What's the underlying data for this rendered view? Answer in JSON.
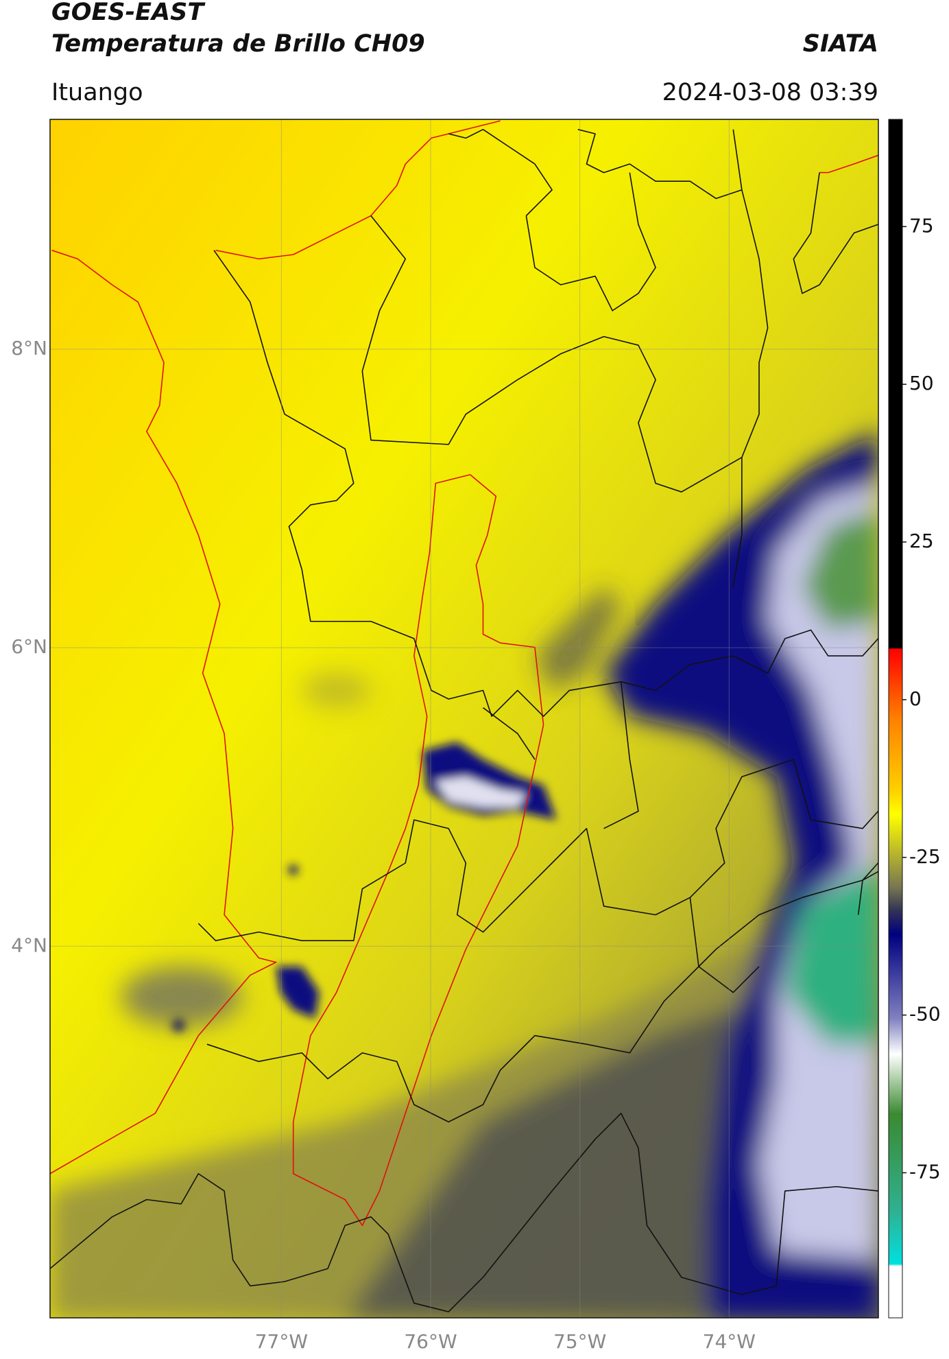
{
  "header": {
    "title": "GOES-EAST",
    "subtitle": "Temperatura de Brillo CH09",
    "brand": "SIATA",
    "location": "Ituango",
    "datetime": "2024-03-08 03:39"
  },
  "map": {
    "lonlim": [
      -78.55,
      -73.0
    ],
    "latlim": [
      1.51,
      9.54
    ],
    "lonticks": [
      {
        "value": -77,
        "label": "77°W"
      },
      {
        "value": -76,
        "label": "76°W"
      },
      {
        "value": -75,
        "label": "75°W"
      },
      {
        "value": -74,
        "label": "74°W"
      }
    ],
    "latticks": [
      {
        "value": 8,
        "label": "8°N"
      },
      {
        "value": 6,
        "label": "6°N"
      },
      {
        "value": 4,
        "label": "4°N"
      }
    ],
    "grid": true
  },
  "colorbar": {
    "lim": [
      -98,
      92
    ],
    "ticks": [
      75,
      50,
      25,
      0,
      -25,
      -50,
      -75
    ]
  }
}
